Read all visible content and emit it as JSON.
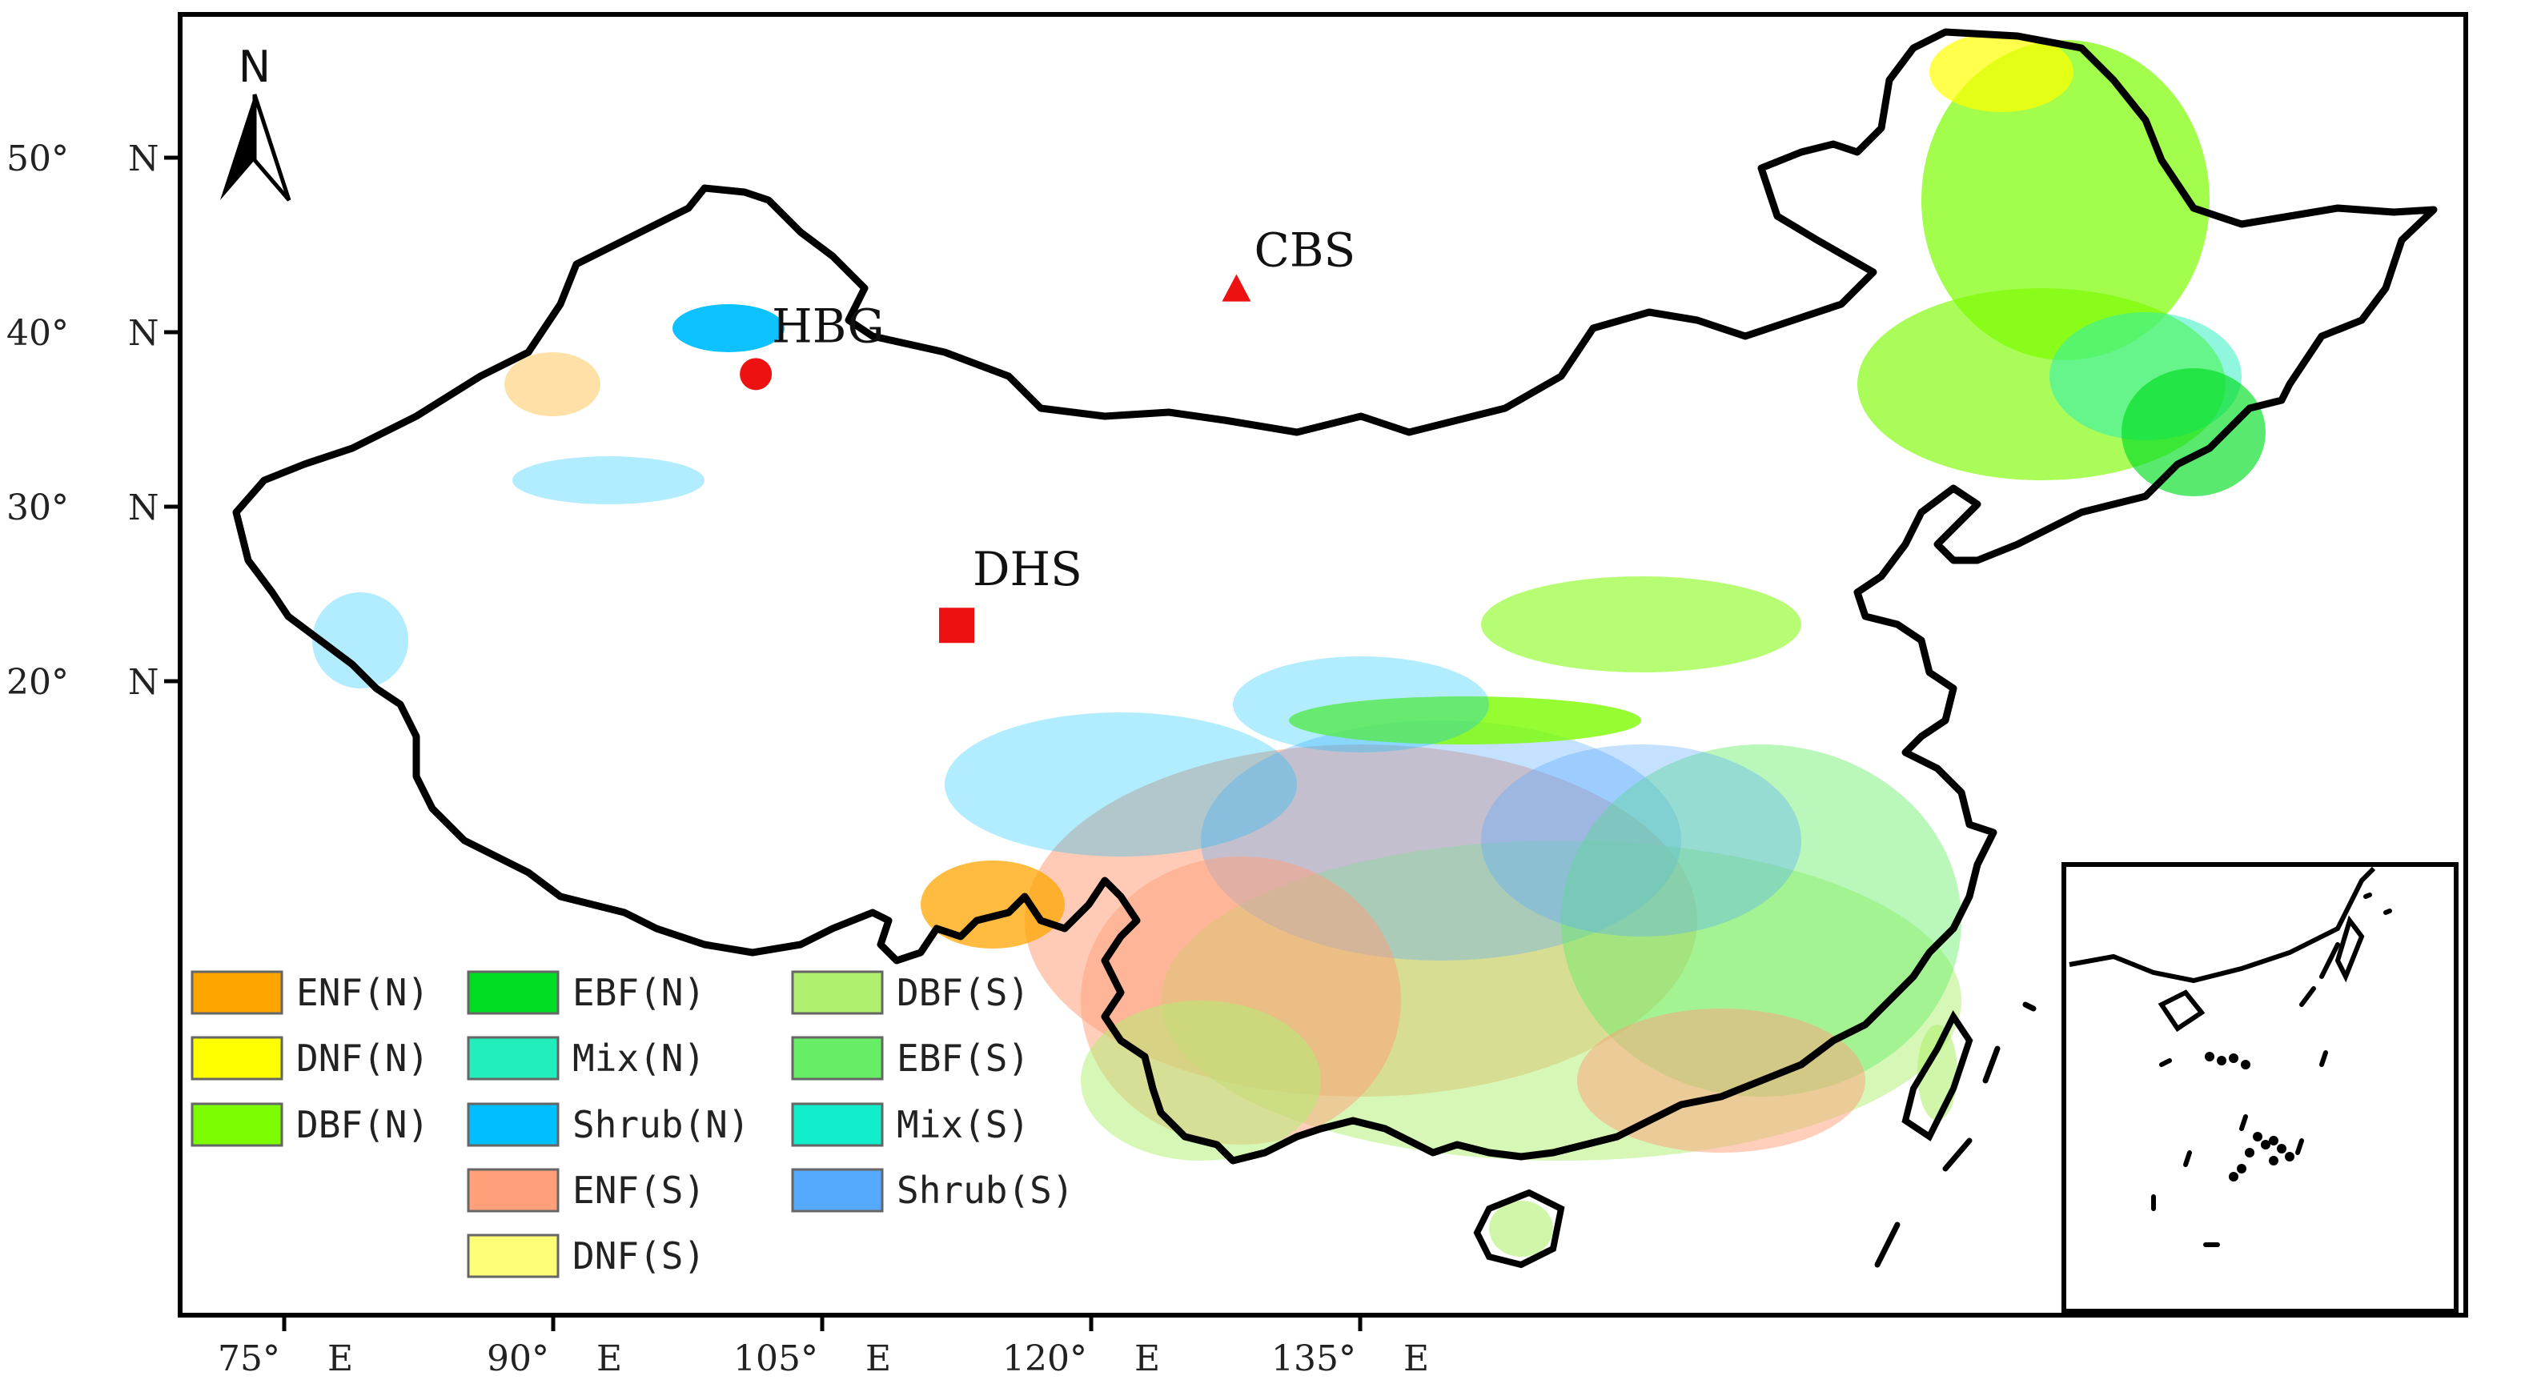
{
  "map": {
    "north_arrow_label": "N",
    "lat_labels": [
      {
        "deg": "50°",
        "dir": "N",
        "lat": 50
      },
      {
        "deg": "40°",
        "dir": "N",
        "lat": 40
      },
      {
        "deg": "30°",
        "dir": "N",
        "lat": 30
      },
      {
        "deg": "20°",
        "dir": "N",
        "lat": 20
      }
    ],
    "lon_labels": [
      {
        "deg": "75°",
        "dir": "E",
        "lon": 75
      },
      {
        "deg": "90°",
        "dir": "E",
        "lon": 90
      },
      {
        "deg": "105°",
        "dir": "E",
        "lon": 105
      },
      {
        "deg": "120°",
        "dir": "E",
        "lon": 120
      },
      {
        "deg": "135°",
        "dir": "E",
        "lon": 135
      }
    ],
    "sites": [
      {
        "name": "HBG",
        "shape": "circle",
        "color": "#ee1111",
        "lon": 101.3,
        "lat": 37.6
      },
      {
        "name": "CBS",
        "shape": "triangle",
        "color": "#ee1111",
        "lon": 128.1,
        "lat": 42.4
      },
      {
        "name": "DHS",
        "shape": "square",
        "color": "#ee1111",
        "lon": 112.5,
        "lat": 23.2
      }
    ]
  },
  "legend": [
    {
      "label": "ENF(N)",
      "color": "#FFA500"
    },
    {
      "label": "DNF(N)",
      "color": "#FFFF00"
    },
    {
      "label": "DBF(N)",
      "color": "#7CFC00"
    },
    {
      "label": "EBF(N)",
      "color": "#00DD22"
    },
    {
      "label": "Mix(N)",
      "color": "#22EEBB"
    },
    {
      "label": "Shrub(N)",
      "color": "#00BFFF"
    },
    {
      "label": "ENF(S)",
      "color": "#FFA07A"
    },
    {
      "label": "DNF(S)",
      "color": "#FFFF77"
    },
    {
      "label": "DBF(S)",
      "color": "#B0F070"
    },
    {
      "label": "EBF(S)",
      "color": "#66EE66"
    },
    {
      "label": "Mix(S)",
      "color": "#11EECC"
    },
    {
      "label": "Shrub(S)",
      "color": "#55AAFF"
    }
  ]
}
